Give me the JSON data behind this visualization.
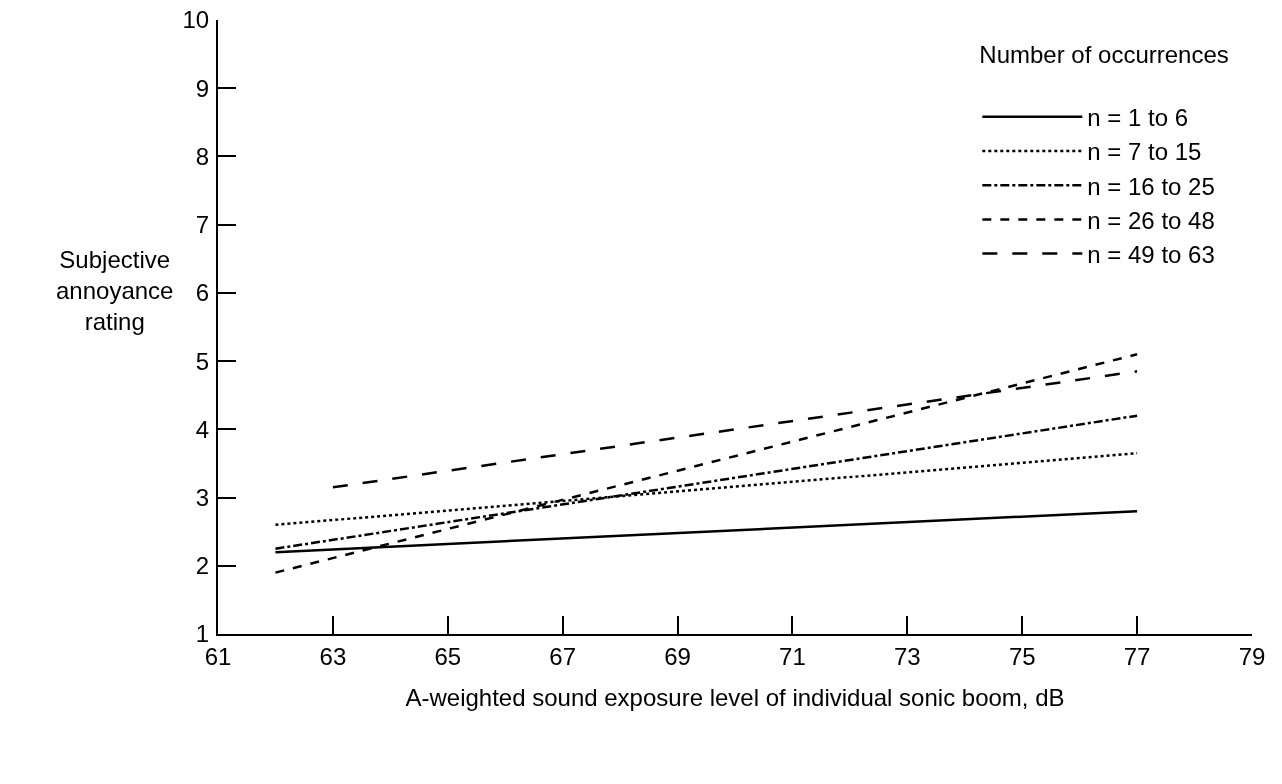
{
  "chart_data": {
    "type": "line",
    "xlabel": "A-weighted sound exposure level of individual sonic boom, dB",
    "ylabel": "Subjective annoyance rating",
    "legend_title": "Number of occurrences",
    "legend": "top right",
    "grid": false,
    "xlim": [
      61,
      79
    ],
    "xticks": [
      61,
      63,
      65,
      67,
      69,
      71,
      73,
      75,
      77,
      79
    ],
    "ylim": [
      1,
      10
    ],
    "yticks": [
      1,
      2,
      3,
      4,
      5,
      6,
      7,
      8,
      9,
      10
    ],
    "series": [
      {
        "name": "n = 1 to 6",
        "color": "#000000",
        "line_style": "solid",
        "x": [
          62,
          77
        ],
        "values": [
          2.2,
          2.8
        ]
      },
      {
        "name": "n = 7 to 15",
        "color": "#000000",
        "line_style": "dotted",
        "x": [
          62,
          77
        ],
        "values": [
          2.6,
          3.65
        ]
      },
      {
        "name": "n = 16 to 25",
        "color": "#000000",
        "line_style": "dashdot",
        "x": [
          62,
          77
        ],
        "values": [
          2.25,
          4.2
        ]
      },
      {
        "name": "n = 26 to 48",
        "color": "#000000",
        "line_style": "dashed",
        "x": [
          62,
          77
        ],
        "values": [
          1.9,
          5.1
        ]
      },
      {
        "name": "n = 49 to 63",
        "color": "#000000",
        "line_style": "longdash",
        "x": [
          63,
          77
        ],
        "values": [
          3.15,
          4.85
        ]
      }
    ]
  }
}
